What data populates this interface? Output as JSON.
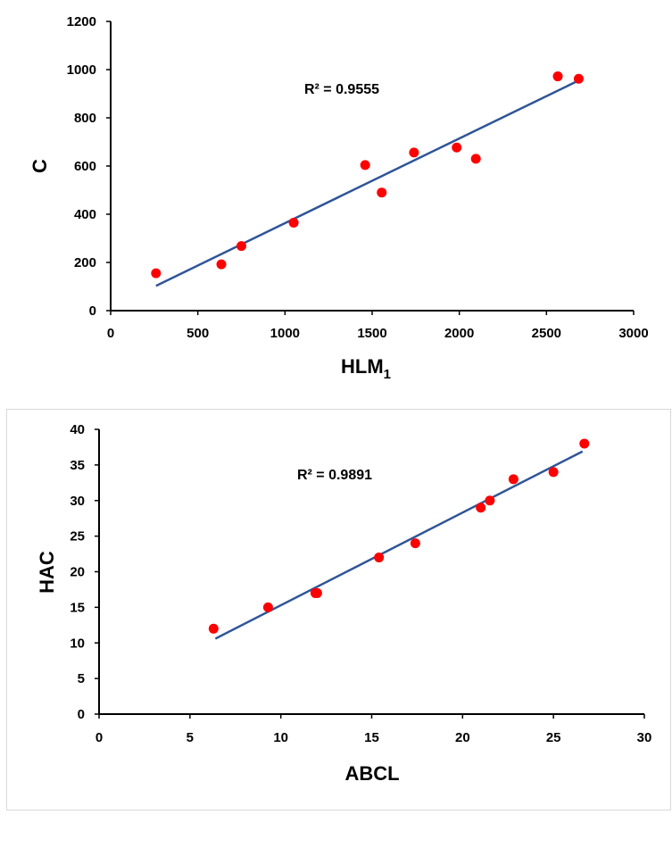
{
  "chart_data": [
    {
      "type": "scatter",
      "xlabel": "HLM",
      "xlabel_sub": "1",
      "ylabel": "C",
      "xlim": [
        0,
        3000
      ],
      "ylim": [
        0,
        1200
      ],
      "xticks": [
        0,
        500,
        1000,
        1500,
        2000,
        2500,
        3000
      ],
      "yticks": [
        0,
        200,
        400,
        600,
        800,
        1000,
        1200
      ],
      "xtick_labels": [
        "0",
        "500",
        "1000",
        "1500",
        "2000",
        "2500",
        "3000"
      ],
      "ytick_labels": [
        "0",
        "200",
        "400",
        "600",
        "800",
        "1000",
        "1200"
      ],
      "grid": false,
      "point_color": "#ff0000",
      "trend_color": "#2f5597",
      "series": [
        {
          "x": [
            260,
            635,
            750,
            1050,
            1460,
            1555,
            1740,
            1985,
            2095,
            2565,
            2685
          ],
          "y": [
            155,
            192,
            268,
            365,
            604,
            490,
            656,
            677,
            630,
            972,
            962
          ]
        }
      ],
      "trendline": {
        "x": [
          260,
          2685
        ],
        "y": [
          103,
          955
        ]
      },
      "annotation": "R² = 0.9555"
    },
    {
      "type": "scatter",
      "xlabel": "ABCL",
      "ylabel": "HAC",
      "xlim": [
        0,
        30
      ],
      "ylim": [
        0,
        40
      ],
      "xticks": [
        0,
        5,
        10,
        15,
        20,
        25,
        30
      ],
      "yticks": [
        0,
        5,
        10,
        15,
        20,
        25,
        30,
        35,
        40
      ],
      "xtick_labels": [
        "0",
        "5",
        "10",
        "15",
        "20",
        "25",
        "30"
      ],
      "ytick_labels": [
        "0",
        "5",
        "10",
        "15",
        "20",
        "25",
        "30",
        "35",
        "40"
      ],
      "grid": false,
      "point_color": "#ff0000",
      "trend_color": "#2f5597",
      "series": [
        {
          "x": [
            6.3,
            9.3,
            11.9,
            12.0,
            15.4,
            17.4,
            21.0,
            21.5,
            22.8,
            25.0,
            26.7
          ],
          "y": [
            12,
            15,
            17,
            17,
            22,
            24,
            29,
            30,
            33,
            34,
            38
          ]
        }
      ],
      "trendline": {
        "x": [
          6.4,
          26.6
        ],
        "y": [
          10.6,
          36.9
        ]
      },
      "annotation": "R² = 0.9891"
    }
  ]
}
